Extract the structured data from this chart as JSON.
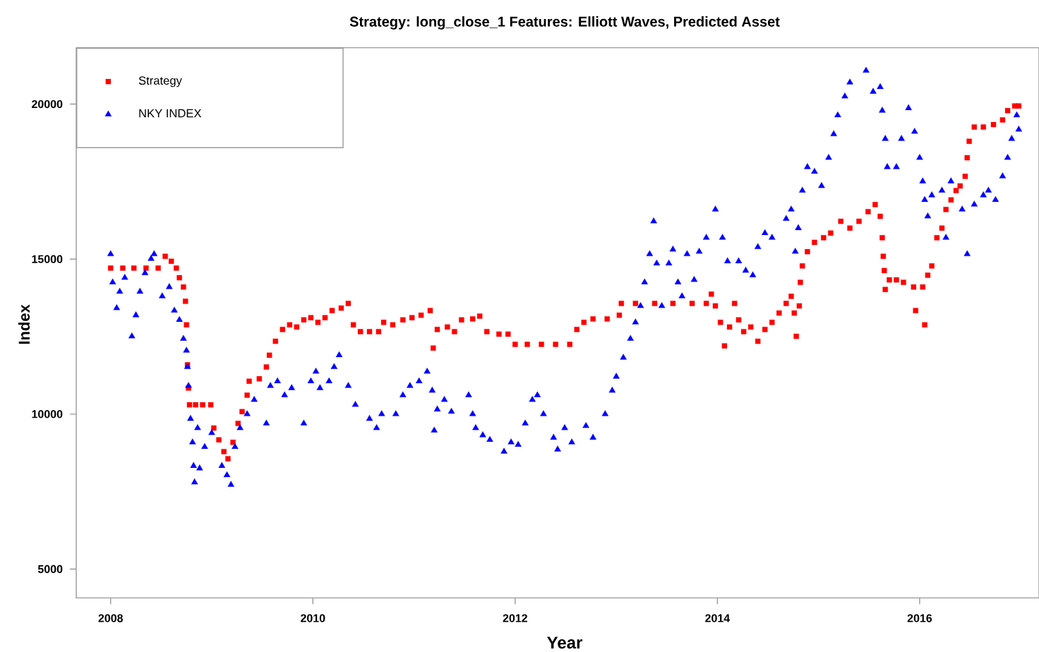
{
  "chart_data": {
    "type": "scatter",
    "title": "Strategy: long_close_1   Features: Elliott Waves, Predicted Asset",
    "xlabel": "Year",
    "ylabel": "Index",
    "xlim": [
      2007.66,
      2017.18
    ],
    "ylim": [
      4070,
      21820
    ],
    "xticks": [
      2008,
      2010,
      2012,
      2014,
      2016
    ],
    "yticks": [
      5000,
      10000,
      15000,
      20000
    ],
    "legend": "top left",
    "series": [
      {
        "name": "Strategy",
        "color": "#ff0000",
        "marker": "square",
        "x": [
          2008.0,
          2008.12,
          2008.23,
          2008.35,
          2008.47,
          2008.54,
          2008.6,
          2008.65,
          2008.68,
          2008.72,
          2008.74,
          2008.75,
          2008.76,
          2008.77,
          2008.78,
          2008.84,
          2008.91,
          2008.99,
          2009.02,
          2009.07,
          2009.12,
          2009.16,
          2009.21,
          2009.26,
          2009.3,
          2009.35,
          2009.37,
          2009.47,
          2009.54,
          2009.57,
          2009.63,
          2009.7,
          2009.77,
          2009.84,
          2009.91,
          2009.98,
          2010.05,
          2010.12,
          2010.19,
          2010.28,
          2010.35,
          2010.4,
          2010.47,
          2010.56,
          2010.65,
          2010.7,
          2010.79,
          2010.89,
          2010.98,
          2011.07,
          2011.16,
          2011.19,
          2011.23,
          2011.33,
          2011.4,
          2011.47,
          2011.58,
          2011.65,
          2011.72,
          2011.84,
          2011.93,
          2012.0,
          2012.12,
          2012.26,
          2012.4,
          2012.54,
          2012.61,
          2012.68,
          2012.77,
          2012.91,
          2013.03,
          2013.05,
          2013.19,
          2013.38,
          2013.56,
          2013.75,
          2013.89,
          2013.94,
          2013.98,
          2014.03,
          2014.07,
          2014.12,
          2014.17,
          2014.21,
          2014.26,
          2014.33,
          2014.4,
          2014.47,
          2014.54,
          2014.61,
          2014.68,
          2014.73,
          2014.76,
          2014.78,
          2014.81,
          2014.82,
          2014.84,
          2014.89,
          2014.96,
          2015.05,
          2015.12,
          2015.22,
          2015.31,
          2015.4,
          2015.49,
          2015.56,
          2015.61,
          2015.63,
          2015.64,
          2015.65,
          2015.66,
          2015.7,
          2015.77,
          2015.84,
          2015.94,
          2015.96,
          2016.03,
          2016.05,
          2016.08,
          2016.12,
          2016.17,
          2016.22,
          2016.26,
          2016.31,
          2016.36,
          2016.4,
          2016.45,
          2016.47,
          2016.49,
          2016.54,
          2016.63,
          2016.73,
          2016.82,
          2016.87,
          2016.94,
          2016.98
        ],
        "values": [
          14710,
          14710,
          14710,
          14710,
          14710,
          15090,
          14930,
          14710,
          14400,
          14100,
          13640,
          12880,
          11590,
          10840,
          10300,
          10300,
          10300,
          10300,
          9550,
          9170,
          8790,
          8560,
          9090,
          9700,
          10080,
          10610,
          11060,
          11140,
          11520,
          11900,
          12350,
          12730,
          12880,
          12810,
          13040,
          13110,
          12960,
          13110,
          13340,
          13420,
          13570,
          12880,
          12660,
          12660,
          12660,
          12960,
          12880,
          13040,
          13110,
          13190,
          13340,
          12130,
          12730,
          12810,
          12660,
          13040,
          13070,
          13160,
          12660,
          12580,
          12580,
          12250,
          12250,
          12250,
          12250,
          12250,
          12730,
          12960,
          13070,
          13070,
          13190,
          13570,
          13570,
          13570,
          13570,
          13570,
          13570,
          13870,
          13490,
          12960,
          12200,
          12810,
          13570,
          13040,
          12660,
          12810,
          12350,
          12730,
          12960,
          13260,
          13570,
          13800,
          13260,
          12510,
          13490,
          14250,
          14780,
          15240,
          15540,
          15690,
          15840,
          16220,
          16000,
          16220,
          16530,
          16760,
          16380,
          15690,
          15090,
          14630,
          14020,
          14330,
          14330,
          14250,
          14100,
          13340,
          14100,
          12880,
          14480,
          14780,
          15690,
          16000,
          16600,
          16910,
          17210,
          17360,
          17670,
          18270,
          18800,
          19260,
          19260,
          19340,
          19490,
          19790,
          19940,
          19940
        ]
      },
      {
        "name": "NKY INDEX",
        "color": "#0000ff",
        "marker": "triangle",
        "x": [
          2008.0,
          2008.02,
          2008.06,
          2008.09,
          2008.14,
          2008.21,
          2008.25,
          2008.29,
          2008.34,
          2008.4,
          2008.43,
          2008.51,
          2008.58,
          2008.63,
          2008.68,
          2008.72,
          2008.75,
          2008.76,
          2008.77,
          2008.79,
          2008.81,
          2008.82,
          2008.83,
          2008.86,
          2008.88,
          2008.93,
          2009.0,
          2009.1,
          2009.15,
          2009.19,
          2009.23,
          2009.28,
          2009.35,
          2009.42,
          2009.54,
          2009.58,
          2009.65,
          2009.72,
          2009.79,
          2009.91,
          2009.98,
          2010.03,
          2010.07,
          2010.16,
          2010.21,
          2010.26,
          2010.35,
          2010.42,
          2010.56,
          2010.63,
          2010.68,
          2010.82,
          2010.89,
          2010.96,
          2011.05,
          2011.13,
          2011.18,
          2011.2,
          2011.23,
          2011.3,
          2011.37,
          2011.54,
          2011.58,
          2011.61,
          2011.68,
          2011.75,
          2011.89,
          2011.96,
          2012.03,
          2012.1,
          2012.17,
          2012.22,
          2012.28,
          2012.38,
          2012.42,
          2012.49,
          2012.56,
          2012.7,
          2012.77,
          2012.89,
          2012.96,
          2013.0,
          2013.07,
          2013.14,
          2013.19,
          2013.24,
          2013.28,
          2013.33,
          2013.37,
          2013.4,
          2013.45,
          2013.52,
          2013.56,
          2013.61,
          2013.65,
          2013.7,
          2013.77,
          2013.82,
          2013.89,
          2013.98,
          2014.05,
          2014.1,
          2014.21,
          2014.28,
          2014.35,
          2014.4,
          2014.47,
          2014.54,
          2014.68,
          2014.73,
          2014.77,
          2014.8,
          2014.84,
          2014.89,
          2014.96,
          2015.03,
          2015.1,
          2015.15,
          2015.19,
          2015.26,
          2015.31,
          2015.47,
          2015.54,
          2015.61,
          2015.63,
          2015.66,
          2015.68,
          2015.77,
          2015.82,
          2015.89,
          2015.95,
          2016.0,
          2016.03,
          2016.05,
          2016.08,
          2016.12,
          2016.22,
          2016.26,
          2016.31,
          2016.42,
          2016.47,
          2016.54,
          2016.63,
          2016.68,
          2016.75,
          2016.82,
          2016.87,
          2016.91,
          2016.96,
          2016.98
        ],
        "values": [
          15160,
          14250,
          13420,
          13950,
          14400,
          12510,
          13190,
          13950,
          14550,
          15010,
          15160,
          13800,
          14100,
          13340,
          13040,
          12430,
          12050,
          11520,
          10910,
          9850,
          9090,
          8330,
          7800,
          9550,
          8250,
          8940,
          9390,
          8330,
          8030,
          7720,
          8940,
          9550,
          10000,
          10460,
          9700,
          10910,
          11060,
          10610,
          10840,
          9700,
          11060,
          11370,
          10840,
          11060,
          11520,
          11900,
          10910,
          10300,
          9850,
          9550,
          10000,
          10000,
          10610,
          10910,
          11060,
          11370,
          10760,
          9470,
          10150,
          10460,
          10080,
          10610,
          10000,
          9550,
          9320,
          9170,
          8790,
          9090,
          9010,
          9700,
          10460,
          10610,
          10000,
          9240,
          8860,
          9550,
          9090,
          9620,
          9240,
          10000,
          10760,
          11210,
          11820,
          12430,
          12960,
          13490,
          14250,
          15160,
          16220,
          14860,
          13490,
          14860,
          15310,
          14250,
          13800,
          15160,
          14330,
          15240,
          15690,
          16600,
          15690,
          14930,
          14930,
          14630,
          14480,
          15390,
          15840,
          15690,
          16300,
          16600,
          15240,
          16000,
          17210,
          17970,
          17820,
          17360,
          18270,
          19030,
          19640,
          20250,
          20700,
          21080,
          20400,
          20550,
          19790,
          18880,
          17970,
          17970,
          18880,
          19870,
          19110,
          18270,
          17510,
          16910,
          16380,
          17060,
          17210,
          15690,
          17510,
          16600,
          15160,
          16760,
          17060,
          17210,
          16910,
          17670,
          18270,
          18880,
          19640,
          19180
        ]
      }
    ]
  }
}
